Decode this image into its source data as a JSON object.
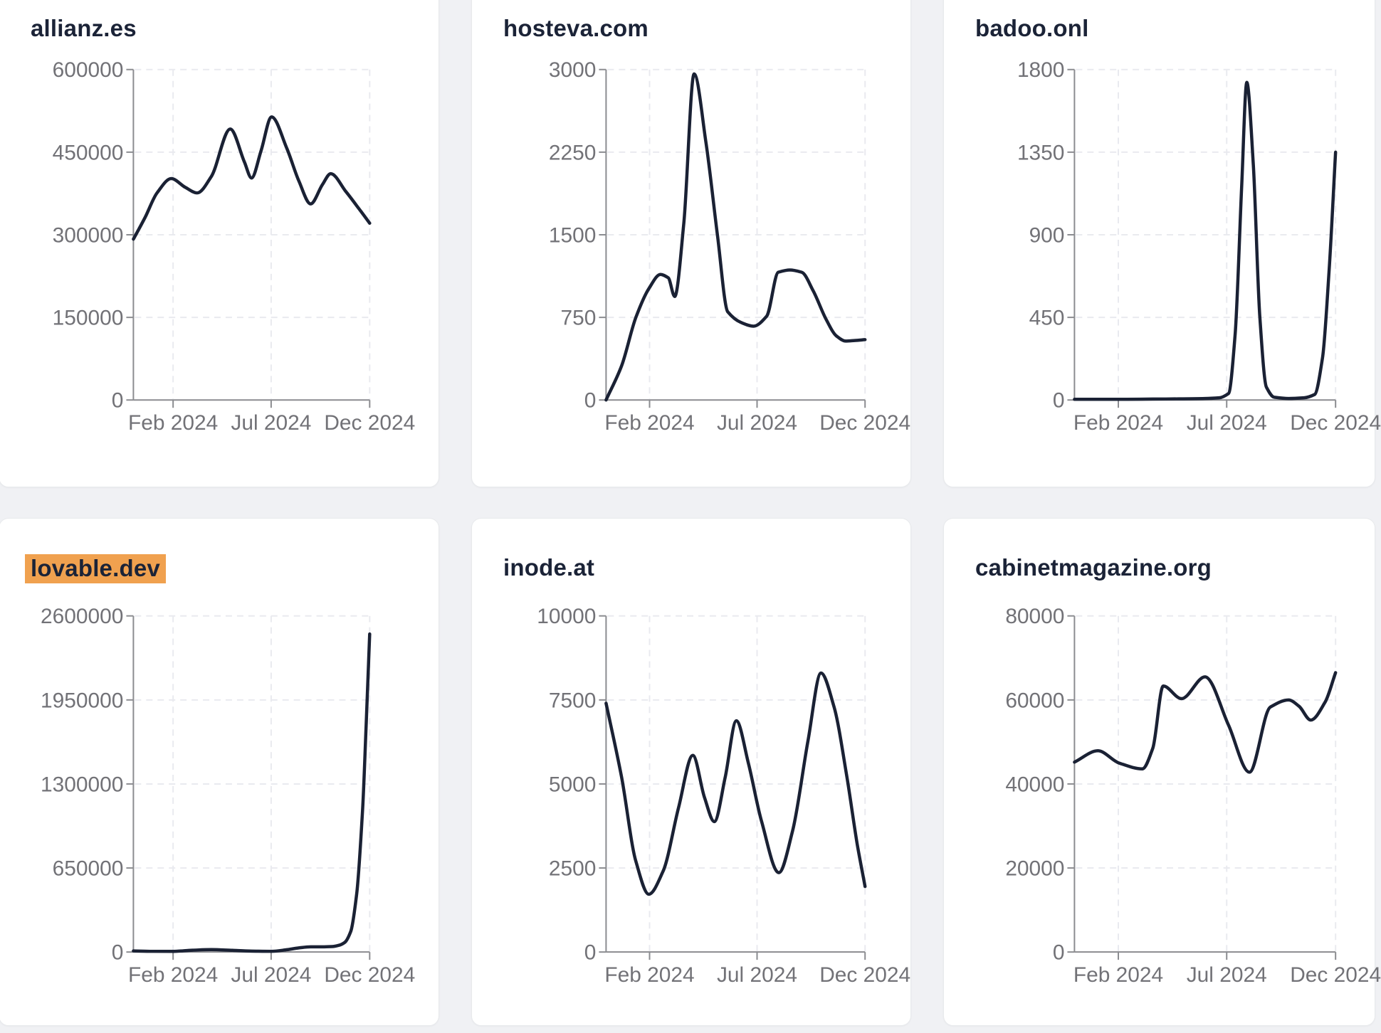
{
  "page": {
    "highlight_color": "#f0a14f",
    "line_color": "#1a2134",
    "title_color": "#1b2337"
  },
  "chart_data": [
    {
      "type": "line",
      "title": "allianz.es",
      "highlighted": false,
      "line_color": "#1a2134",
      "grid": true,
      "ylim": [
        0,
        600000
      ],
      "y_ticks": [
        0,
        150000,
        300000,
        450000,
        600000
      ],
      "x_ticks": [
        {
          "label": "Feb 2024",
          "t": 0.168
        },
        {
          "label": "Jul 2024",
          "t": 0.583
        },
        {
          "label": "Dec 2024",
          "t": 1.0
        }
      ],
      "points": [
        [
          0,
          292000
        ],
        [
          0.05,
          332000
        ],
        [
          0.1,
          376000
        ],
        [
          0.16,
          402000
        ],
        [
          0.22,
          386000
        ],
        [
          0.27,
          376000
        ],
        [
          0.33,
          406000
        ],
        [
          0.41,
          492000
        ],
        [
          0.47,
          432000
        ],
        [
          0.5,
          403000
        ],
        [
          0.54,
          452000
        ],
        [
          0.585,
          514000
        ],
        [
          0.65,
          456000
        ],
        [
          0.7,
          398000
        ],
        [
          0.75,
          356000
        ],
        [
          0.8,
          391000
        ],
        [
          0.835,
          411000
        ],
        [
          0.9,
          378000
        ],
        [
          0.95,
          350000
        ],
        [
          1,
          321000
        ]
      ]
    },
    {
      "type": "line",
      "title": "hosteva.com",
      "highlighted": false,
      "line_color": "#1a2134",
      "grid": true,
      "ylim": [
        0,
        3000
      ],
      "y_ticks": [
        0,
        750,
        1500,
        2250,
        3000
      ],
      "x_ticks": [
        {
          "label": "Feb 2024",
          "t": 0.168
        },
        {
          "label": "Jul 2024",
          "t": 0.583
        },
        {
          "label": "Dec 2024",
          "t": 1.0
        }
      ],
      "points": [
        [
          0,
          0
        ],
        [
          0.06,
          310
        ],
        [
          0.115,
          750
        ],
        [
          0.165,
          1010
        ],
        [
          0.21,
          1140
        ],
        [
          0.24,
          1110
        ],
        [
          0.265,
          940
        ],
        [
          0.3,
          1600
        ],
        [
          0.34,
          2960
        ],
        [
          0.385,
          2350
        ],
        [
          0.43,
          1500
        ],
        [
          0.47,
          800
        ],
        [
          0.52,
          705
        ],
        [
          0.57,
          670
        ],
        [
          0.62,
          760
        ],
        [
          0.665,
          1160
        ],
        [
          0.71,
          1180
        ],
        [
          0.755,
          1160
        ],
        [
          0.8,
          990
        ],
        [
          0.85,
          730
        ],
        [
          0.89,
          580
        ],
        [
          0.925,
          535
        ],
        [
          0.96,
          540
        ],
        [
          1,
          548
        ]
      ]
    },
    {
      "type": "line",
      "title": "badoo.onl",
      "highlighted": false,
      "line_color": "#1a2134",
      "grid": true,
      "ylim": [
        0,
        1800
      ],
      "y_ticks": [
        0,
        450,
        900,
        1350,
        1800
      ],
      "x_ticks": [
        {
          "label": "Feb 2024",
          "t": 0.168
        },
        {
          "label": "Jul 2024",
          "t": 0.583
        },
        {
          "label": "Dec 2024",
          "t": 1.0
        }
      ],
      "points": [
        [
          0,
          4
        ],
        [
          0.1,
          4
        ],
        [
          0.2,
          4
        ],
        [
          0.3,
          5
        ],
        [
          0.4,
          6
        ],
        [
          0.5,
          8
        ],
        [
          0.555,
          12
        ],
        [
          0.59,
          35
        ],
        [
          0.615,
          350
        ],
        [
          0.64,
          1150
        ],
        [
          0.66,
          1730
        ],
        [
          0.685,
          1280
        ],
        [
          0.71,
          450
        ],
        [
          0.735,
          70
        ],
        [
          0.765,
          15
        ],
        [
          0.82,
          8
        ],
        [
          0.88,
          12
        ],
        [
          0.92,
          30
        ],
        [
          0.95,
          230
        ],
        [
          0.975,
          700
        ],
        [
          1,
          1350
        ]
      ]
    },
    {
      "type": "line",
      "title": "lovable.dev",
      "highlighted": true,
      "line_color": "#1a2134",
      "grid": true,
      "ylim": [
        0,
        2600000
      ],
      "y_ticks": [
        0,
        650000,
        1300000,
        1950000,
        2600000
      ],
      "x_ticks": [
        {
          "label": "Feb 2024",
          "t": 0.168
        },
        {
          "label": "Jul 2024",
          "t": 0.583
        },
        {
          "label": "Dec 2024",
          "t": 1.0
        }
      ],
      "points": [
        [
          0,
          9000
        ],
        [
          0.08,
          5500
        ],
        [
          0.165,
          5000
        ],
        [
          0.25,
          14000
        ],
        [
          0.33,
          18500
        ],
        [
          0.42,
          13000
        ],
        [
          0.5,
          7000
        ],
        [
          0.585,
          5600
        ],
        [
          0.65,
          18000
        ],
        [
          0.7,
          32000
        ],
        [
          0.75,
          40000
        ],
        [
          0.8,
          40000
        ],
        [
          0.84,
          42000
        ],
        [
          0.87,
          52000
        ],
        [
          0.895,
          75000
        ],
        [
          0.92,
          160000
        ],
        [
          0.945,
          450000
        ],
        [
          0.97,
          1100000
        ],
        [
          0.985,
          1750000
        ],
        [
          1,
          2460000
        ]
      ]
    },
    {
      "type": "line",
      "title": "inode.at",
      "highlighted": false,
      "line_color": "#1a2134",
      "grid": true,
      "ylim": [
        0,
        10000
      ],
      "y_ticks": [
        0,
        2500,
        5000,
        7500,
        10000
      ],
      "x_ticks": [
        {
          "label": "Feb 2024",
          "t": 0.168
        },
        {
          "label": "Jul 2024",
          "t": 0.583
        },
        {
          "label": "Dec 2024",
          "t": 1.0
        }
      ],
      "points": [
        [
          0,
          7400
        ],
        [
          0.06,
          5200
        ],
        [
          0.115,
          2700
        ],
        [
          0.165,
          1720
        ],
        [
          0.22,
          2400
        ],
        [
          0.28,
          4300
        ],
        [
          0.335,
          5850
        ],
        [
          0.38,
          4600
        ],
        [
          0.418,
          3880
        ],
        [
          0.46,
          5200
        ],
        [
          0.503,
          6880
        ],
        [
          0.55,
          5600
        ],
        [
          0.6,
          3900
        ],
        [
          0.667,
          2360
        ],
        [
          0.72,
          3600
        ],
        [
          0.78,
          6300
        ],
        [
          0.83,
          8300
        ],
        [
          0.88,
          7300
        ],
        [
          0.93,
          5200
        ],
        [
          0.97,
          3200
        ],
        [
          1,
          1950
        ]
      ]
    },
    {
      "type": "line",
      "title": "cabinetmagazine.org",
      "highlighted": false,
      "line_color": "#1a2134",
      "grid": true,
      "ylim": [
        0,
        80000
      ],
      "y_ticks": [
        0,
        20000,
        40000,
        60000,
        80000
      ],
      "x_ticks": [
        {
          "label": "Feb 2024",
          "t": 0.168
        },
        {
          "label": "Jul 2024",
          "t": 0.583
        },
        {
          "label": "Dec 2024",
          "t": 1.0
        }
      ],
      "points": [
        [
          0,
          45200
        ],
        [
          0.09,
          47900
        ],
        [
          0.17,
          45000
        ],
        [
          0.26,
          43600
        ],
        [
          0.3,
          48500
        ],
        [
          0.34,
          63300
        ],
        [
          0.41,
          60300
        ],
        [
          0.5,
          65500
        ],
        [
          0.59,
          54000
        ],
        [
          0.67,
          42800
        ],
        [
          0.75,
          58300
        ],
        [
          0.82,
          60000
        ],
        [
          0.86,
          58500
        ],
        [
          0.905,
          55200
        ],
        [
          0.96,
          59500
        ],
        [
          1,
          66500
        ]
      ]
    }
  ]
}
